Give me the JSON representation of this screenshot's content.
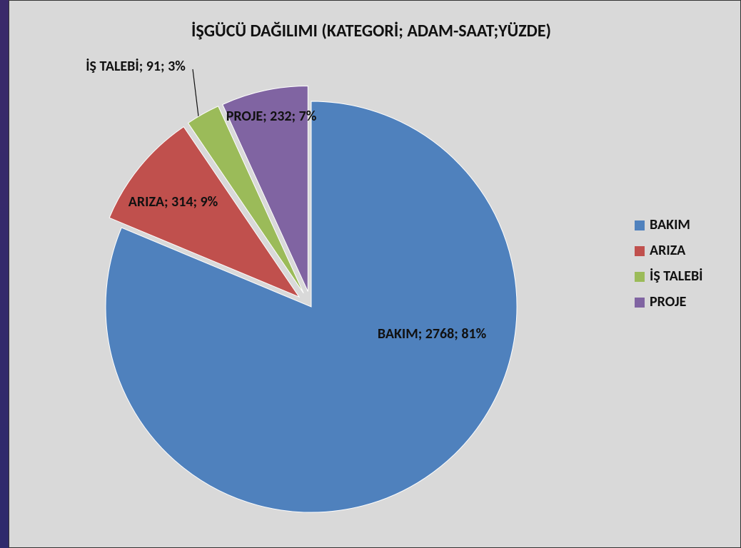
{
  "chart_data": {
    "type": "pie",
    "title": "İŞGÜCÜ DAĞILIMI (KATEGORİ; ADAM-SAAT;YÜZDE)",
    "categories": [
      "BAKIM",
      "ARIZA",
      "İŞ TALEBİ",
      "PROJE"
    ],
    "values": [
      2768,
      314,
      91,
      232
    ],
    "value_labels": [
      "BAKIM; 2768; 81%",
      "ARIZA; 314; 9%",
      "İŞ TALEBİ; 91; 3%",
      "PROJE; 232; 7%"
    ],
    "colors": [
      "#4f81bd",
      "#c0504d",
      "#9bbb59",
      "#8064a2"
    ],
    "legend": "right"
  }
}
